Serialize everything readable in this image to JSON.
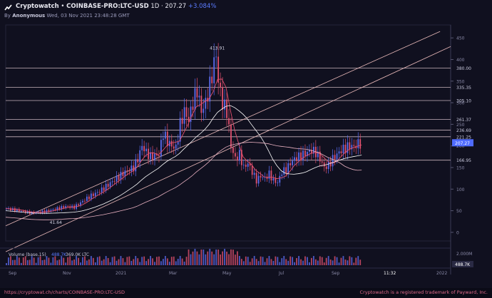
{
  "header": {
    "app_name": "Cryptowatch",
    "separator": "•",
    "market": "COINBASE-PRO:LTC-USD",
    "interval": "1D",
    "price": "207.27",
    "change": "+3.084%",
    "by_label": "By",
    "author": "Anonymous",
    "timestamp": "Wed, 03 Nov 2021 23:48:28 GMT"
  },
  "footer": {
    "url": "https://cryptowat.ch/charts/COINBASE-PRO:LTC-USD",
    "trademark": "Cryptowatch is a registered trademark of Payward, Inc."
  },
  "colors": {
    "background": "#10101f",
    "up_candle": "#5b6cf0",
    "down_candle": "#e0506e",
    "level_line": "#e8d0d8",
    "trend_line": "#e8b8b8",
    "price_tag": "#4f6bff"
  },
  "chart_data": {
    "type": "candlestick",
    "y_ticks": [
      "450",
      "400",
      "350",
      "300",
      "250",
      "200",
      "150",
      "100",
      "50",
      "0"
    ],
    "level_labels": [
      "380.00",
      "335.35",
      "305.10",
      "261.37",
      "236.69",
      "221.25",
      "166.95"
    ],
    "current_price": "207.27",
    "peak_label": "413.91",
    "low_label": "41.64",
    "x_labels": [
      "Sep",
      "Nov",
      "2021",
      "Mar",
      "May",
      "Jul",
      "Sep",
      "11:32",
      "2022"
    ],
    "volume_label": "Volume (base,15)",
    "volume_value_1": "488.7K",
    "volume_value_2": "369.0K LTC",
    "volume_ticks": [
      "2.000M",
      "488.7K"
    ],
    "series_price": [
      {
        "t": 0,
        "p": 55
      },
      {
        "t": 4,
        "p": 52
      },
      {
        "t": 8,
        "p": 48
      },
      {
        "t": 12,
        "p": 45
      },
      {
        "t": 16,
        "p": 47
      },
      {
        "t": 20,
        "p": 50
      },
      {
        "t": 24,
        "p": 55
      },
      {
        "t": 28,
        "p": 60
      },
      {
        "t": 32,
        "p": 58
      },
      {
        "t": 36,
        "p": 72
      },
      {
        "t": 40,
        "p": 85
      },
      {
        "t": 44,
        "p": 95
      },
      {
        "t": 48,
        "p": 110
      },
      {
        "t": 52,
        "p": 125
      },
      {
        "t": 56,
        "p": 140
      },
      {
        "t": 60,
        "p": 150
      },
      {
        "t": 62,
        "p": 170
      },
      {
        "t": 64,
        "p": 200
      },
      {
        "t": 66,
        "p": 185
      },
      {
        "t": 68,
        "p": 175
      },
      {
        "t": 72,
        "p": 180
      },
      {
        "t": 74,
        "p": 230
      },
      {
        "t": 76,
        "p": 210
      },
      {
        "t": 78,
        "p": 200
      },
      {
        "t": 80,
        "p": 195
      },
      {
        "t": 82,
        "p": 250
      },
      {
        "t": 84,
        "p": 280
      },
      {
        "t": 86,
        "p": 260
      },
      {
        "t": 88,
        "p": 300
      },
      {
        "t": 90,
        "p": 330
      },
      {
        "t": 92,
        "p": 280
      },
      {
        "t": 94,
        "p": 300
      },
      {
        "t": 96,
        "p": 340
      },
      {
        "t": 98,
        "p": 390
      },
      {
        "t": 99,
        "p": 413
      },
      {
        "t": 100,
        "p": 350
      },
      {
        "t": 102,
        "p": 300
      },
      {
        "t": 104,
        "p": 280
      },
      {
        "t": 106,
        "p": 200
      },
      {
        "t": 108,
        "p": 170
      },
      {
        "t": 110,
        "p": 180
      },
      {
        "t": 112,
        "p": 150
      },
      {
        "t": 114,
        "p": 160
      },
      {
        "t": 116,
        "p": 140
      },
      {
        "t": 118,
        "p": 120
      },
      {
        "t": 120,
        "p": 130
      },
      {
        "t": 122,
        "p": 125
      },
      {
        "t": 124,
        "p": 135
      },
      {
        "t": 126,
        "p": 120
      },
      {
        "t": 128,
        "p": 115
      },
      {
        "t": 130,
        "p": 140
      },
      {
        "t": 132,
        "p": 145
      },
      {
        "t": 134,
        "p": 160
      },
      {
        "t": 136,
        "p": 170
      },
      {
        "t": 138,
        "p": 175
      },
      {
        "t": 140,
        "p": 180
      },
      {
        "t": 142,
        "p": 185
      },
      {
        "t": 144,
        "p": 190
      },
      {
        "t": 146,
        "p": 185
      },
      {
        "t": 148,
        "p": 170
      },
      {
        "t": 150,
        "p": 150
      },
      {
        "t": 152,
        "p": 155
      },
      {
        "t": 154,
        "p": 170
      },
      {
        "t": 156,
        "p": 180
      },
      {
        "t": 158,
        "p": 190
      },
      {
        "t": 160,
        "p": 195
      },
      {
        "t": 162,
        "p": 200
      },
      {
        "t": 164,
        "p": 198
      },
      {
        "t": 166,
        "p": 205
      },
      {
        "t": 168,
        "p": 207
      }
    ]
  }
}
